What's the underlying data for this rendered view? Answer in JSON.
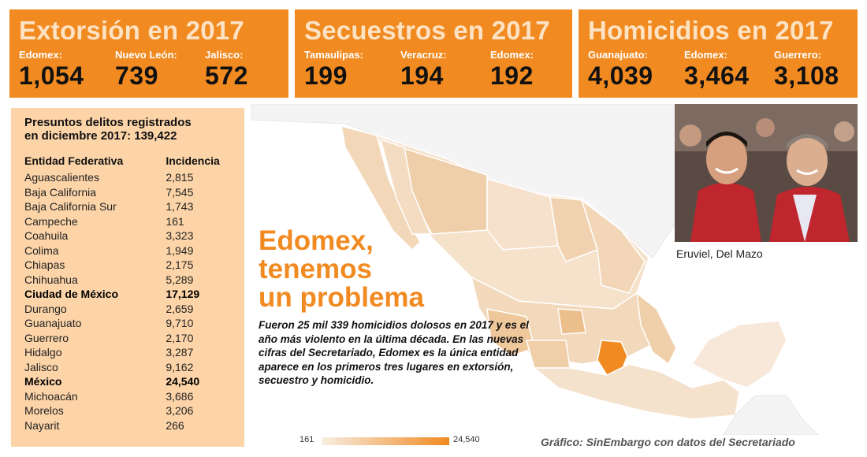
{
  "boxes": [
    {
      "title": "Extorsión en 2017",
      "items": [
        {
          "state": "Edomex:",
          "value": "1,054"
        },
        {
          "state": "Nuevo León:",
          "value": "739"
        },
        {
          "state": "Jalisco:",
          "value": "572"
        }
      ]
    },
    {
      "title": "Secuestros en 2017",
      "items": [
        {
          "state": "Tamaulipas:",
          "value": "199"
        },
        {
          "state": "Veracruz:",
          "value": "194"
        },
        {
          "state": "Edomex:",
          "value": "192"
        }
      ]
    },
    {
      "title": "Homicidios en 2017",
      "items": [
        {
          "state": "Guanajuato:",
          "value": "4,039"
        },
        {
          "state": "Edomex:",
          "value": "3,464"
        },
        {
          "state": "Guerrero:",
          "value": "3,108"
        }
      ]
    }
  ],
  "table": {
    "title_line1": "Presuntos delitos registrados",
    "title_line2": "en diciembre 2017: 139,422",
    "header": {
      "entity": "Entidad Federativa",
      "incidence": "Incidencia"
    },
    "rows": [
      {
        "entity": "Aguascalientes",
        "value": "2,815",
        "bold": false
      },
      {
        "entity": "Baja California",
        "value": "7,545",
        "bold": false
      },
      {
        "entity": "Baja California Sur",
        "value": "1,743",
        "bold": false
      },
      {
        "entity": "Campeche",
        "value": "161",
        "bold": false
      },
      {
        "entity": "Coahuila",
        "value": "3,323",
        "bold": false
      },
      {
        "entity": "Colima",
        "value": "1,949",
        "bold": false
      },
      {
        "entity": "Chiapas",
        "value": "2,175",
        "bold": false
      },
      {
        "entity": "Chihuahua",
        "value": "5,289",
        "bold": false
      },
      {
        "entity": "Ciudad de México",
        "value": "17,129",
        "bold": true
      },
      {
        "entity": "Durango",
        "value": "2,659",
        "bold": false
      },
      {
        "entity": "Guanajuato",
        "value": "9,710",
        "bold": false
      },
      {
        "entity": "Guerrero",
        "value": "2,170",
        "bold": false
      },
      {
        "entity": "Hidalgo",
        "value": "3,287",
        "bold": false
      },
      {
        "entity": "Jalisco",
        "value": "9,162",
        "bold": false
      },
      {
        "entity": "México",
        "value": "24,540",
        "bold": true
      },
      {
        "entity": "Michoacán",
        "value": "3,686",
        "bold": false
      },
      {
        "entity": "Morelos",
        "value": "3,206",
        "bold": false
      },
      {
        "entity": "Nayarit",
        "value": "266",
        "bold": false
      }
    ]
  },
  "headline": {
    "line1": "Edomex,",
    "line2": "tenemos",
    "line3": "un problema"
  },
  "body": "Fueron 25 mil 339 homicidios dolosos en 2017 y es el año más violento en la última década. En las nuevas cifras del Secretariado, Edomex es la única entidad aparece en los primeros tres lugares en extorsión, secuestro y homicidio.",
  "photo_caption": "Eruviel, Del Mazo",
  "legend": {
    "min": "161",
    "max": "24,540"
  },
  "credit": "Gráfico: SinEmbargo con datos del Secretariado",
  "colors": {
    "accent": "#F18A21",
    "table_bg": "#FCD4A8",
    "title_tint": "#FDE3C4",
    "map_low": "#F8EEE3"
  }
}
